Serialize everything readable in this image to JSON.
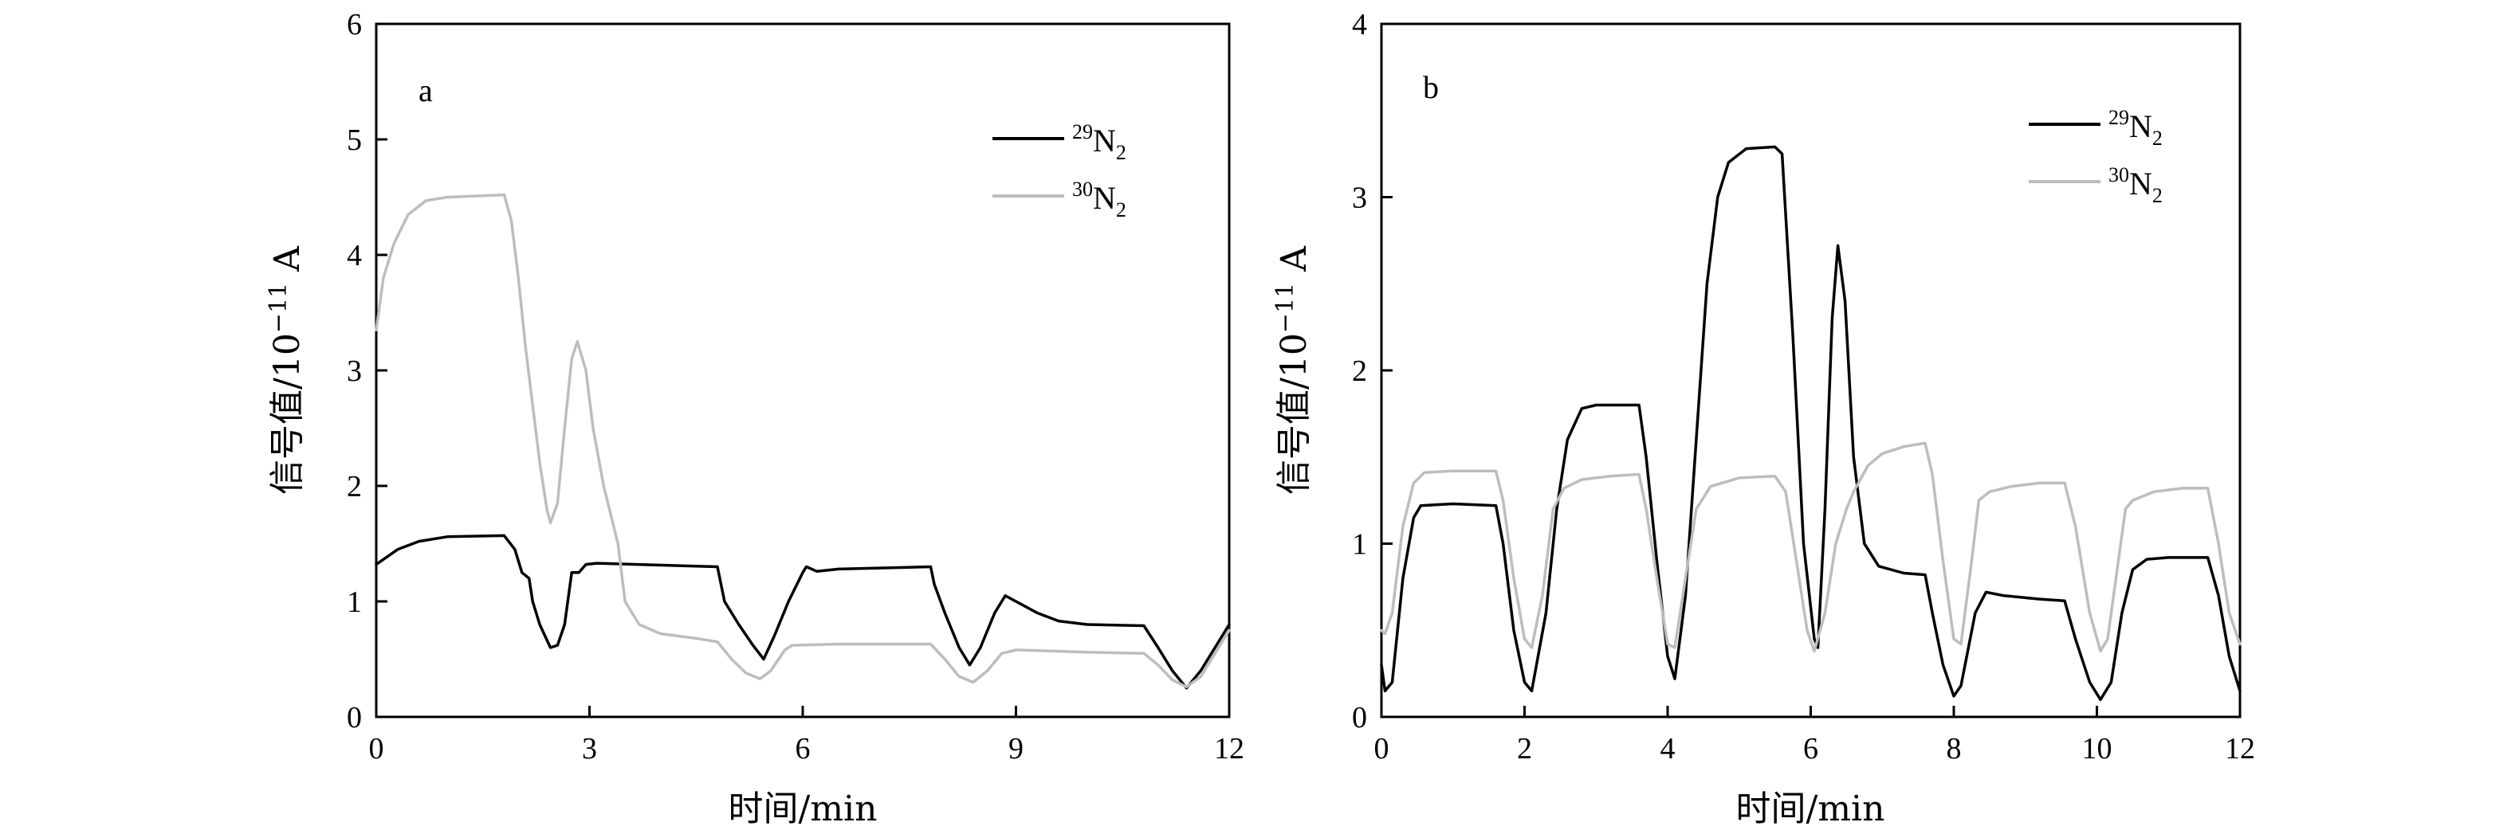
{
  "chart_data": [
    {
      "type": "line",
      "panel_label": "a",
      "xlabel": "时间/min",
      "ylabel_prefix": "信号值/10",
      "ylabel_exp": "−11",
      "ylabel_suffix": " A",
      "xlim": [
        0,
        12
      ],
      "ylim": [
        0,
        6
      ],
      "xticks": [
        0,
        3,
        6,
        9,
        12
      ],
      "yticks": [
        0,
        1,
        2,
        3,
        4,
        5,
        6
      ],
      "grid": false,
      "legend_position": "top-right",
      "series": [
        {
          "name": "N",
          "name_sup": "29",
          "name_sub": "2",
          "color": "#000000",
          "points": [
            [
              0,
              1.32
            ],
            [
              0.3,
              1.45
            ],
            [
              0.6,
              1.52
            ],
            [
              1,
              1.56
            ],
            [
              1.8,
              1.57
            ],
            [
              1.95,
              1.45
            ],
            [
              2.05,
              1.25
            ],
            [
              2.15,
              1.2
            ],
            [
              2.2,
              1.0
            ],
            [
              2.3,
              0.8
            ],
            [
              2.45,
              0.6
            ],
            [
              2.55,
              0.62
            ],
            [
              2.65,
              0.8
            ],
            [
              2.75,
              1.25
            ],
            [
              2.85,
              1.25
            ],
            [
              2.95,
              1.32
            ],
            [
              3.1,
              1.33
            ],
            [
              4.8,
              1.3
            ],
            [
              4.9,
              1.0
            ],
            [
              5.1,
              0.8
            ],
            [
              5.3,
              0.62
            ],
            [
              5.45,
              0.5
            ],
            [
              5.6,
              0.7
            ],
            [
              5.8,
              1.0
            ],
            [
              6.0,
              1.25
            ],
            [
              6.05,
              1.3
            ],
            [
              6.2,
              1.26
            ],
            [
              6.5,
              1.28
            ],
            [
              7.8,
              1.3
            ],
            [
              7.85,
              1.15
            ],
            [
              8.0,
              0.9
            ],
            [
              8.2,
              0.6
            ],
            [
              8.35,
              0.45
            ],
            [
              8.5,
              0.6
            ],
            [
              8.7,
              0.9
            ],
            [
              8.85,
              1.05
            ],
            [
              9.0,
              1.0
            ],
            [
              9.3,
              0.9
            ],
            [
              9.6,
              0.83
            ],
            [
              10.0,
              0.8
            ],
            [
              10.8,
              0.79
            ],
            [
              11.0,
              0.6
            ],
            [
              11.2,
              0.4
            ],
            [
              11.4,
              0.25
            ],
            [
              11.6,
              0.4
            ],
            [
              11.8,
              0.6
            ],
            [
              12,
              0.8
            ]
          ]
        },
        {
          "name": "N",
          "name_sup": "30",
          "name_sub": "2",
          "color": "#bdbdbd",
          "points": [
            [
              0,
              3.35
            ],
            [
              0.1,
              3.8
            ],
            [
              0.25,
              4.1
            ],
            [
              0.45,
              4.35
            ],
            [
              0.7,
              4.47
            ],
            [
              1,
              4.5
            ],
            [
              1.8,
              4.52
            ],
            [
              1.9,
              4.3
            ],
            [
              2.0,
              3.8
            ],
            [
              2.1,
              3.2
            ],
            [
              2.2,
              2.7
            ],
            [
              2.3,
              2.2
            ],
            [
              2.4,
              1.8
            ],
            [
              2.45,
              1.68
            ],
            [
              2.55,
              1.85
            ],
            [
              2.65,
              2.5
            ],
            [
              2.75,
              3.1
            ],
            [
              2.83,
              3.25
            ],
            [
              2.95,
              3.0
            ],
            [
              3.05,
              2.5
            ],
            [
              3.2,
              2.0
            ],
            [
              3.4,
              1.5
            ],
            [
              3.5,
              1.0
            ],
            [
              3.7,
              0.8
            ],
            [
              4.0,
              0.72
            ],
            [
              4.5,
              0.68
            ],
            [
              4.8,
              0.65
            ],
            [
              5.0,
              0.5
            ],
            [
              5.2,
              0.38
            ],
            [
              5.4,
              0.33
            ],
            [
              5.55,
              0.4
            ],
            [
              5.75,
              0.58
            ],
            [
              5.85,
              0.62
            ],
            [
              6.5,
              0.63
            ],
            [
              7.8,
              0.63
            ],
            [
              8.0,
              0.5
            ],
            [
              8.2,
              0.35
            ],
            [
              8.4,
              0.3
            ],
            [
              8.6,
              0.4
            ],
            [
              8.8,
              0.55
            ],
            [
              9.0,
              0.58
            ],
            [
              10.0,
              0.56
            ],
            [
              10.8,
              0.55
            ],
            [
              11.0,
              0.45
            ],
            [
              11.2,
              0.32
            ],
            [
              11.4,
              0.26
            ],
            [
              11.6,
              0.35
            ],
            [
              11.8,
              0.55
            ],
            [
              12,
              0.75
            ]
          ]
        }
      ]
    },
    {
      "type": "line",
      "panel_label": "b",
      "xlabel": "时间/min",
      "ylabel_prefix": "信号值/10",
      "ylabel_exp": "−11",
      "ylabel_suffix": " A",
      "xlim": [
        0,
        12
      ],
      "ylim": [
        0,
        4
      ],
      "xticks": [
        0,
        2,
        4,
        6,
        8,
        10,
        12
      ],
      "yticks": [
        0,
        1,
        2,
        3,
        4
      ],
      "grid": false,
      "legend_position": "top-right",
      "series": [
        {
          "name": "N",
          "name_sup": "29",
          "name_sub": "2",
          "color": "#000000",
          "points": [
            [
              0,
              0.3
            ],
            [
              0.05,
              0.15
            ],
            [
              0.15,
              0.2
            ],
            [
              0.3,
              0.8
            ],
            [
              0.45,
              1.15
            ],
            [
              0.55,
              1.22
            ],
            [
              1.0,
              1.23
            ],
            [
              1.6,
              1.22
            ],
            [
              1.7,
              1.0
            ],
            [
              1.85,
              0.5
            ],
            [
              2.0,
              0.2
            ],
            [
              2.1,
              0.15
            ],
            [
              2.3,
              0.6
            ],
            [
              2.45,
              1.2
            ],
            [
              2.6,
              1.6
            ],
            [
              2.8,
              1.78
            ],
            [
              3.0,
              1.8
            ],
            [
              3.6,
              1.8
            ],
            [
              3.7,
              1.5
            ],
            [
              3.85,
              0.9
            ],
            [
              4.0,
              0.35
            ],
            [
              4.1,
              0.22
            ],
            [
              4.25,
              0.7
            ],
            [
              4.4,
              1.6
            ],
            [
              4.55,
              2.5
            ],
            [
              4.7,
              3.0
            ],
            [
              4.85,
              3.2
            ],
            [
              5.1,
              3.28
            ],
            [
              5.5,
              3.29
            ],
            [
              5.6,
              3.25
            ],
            [
              5.75,
              2.2
            ],
            [
              5.9,
              1.0
            ],
            [
              6.05,
              0.45
            ],
            [
              6.1,
              0.4
            ],
            [
              6.2,
              1.2
            ],
            [
              6.3,
              2.3
            ],
            [
              6.38,
              2.72
            ],
            [
              6.48,
              2.4
            ],
            [
              6.6,
              1.5
            ],
            [
              6.75,
              1.0
            ],
            [
              6.95,
              0.87
            ],
            [
              7.3,
              0.83
            ],
            [
              7.6,
              0.82
            ],
            [
              7.7,
              0.6
            ],
            [
              7.85,
              0.3
            ],
            [
              8.0,
              0.12
            ],
            [
              8.1,
              0.18
            ],
            [
              8.3,
              0.6
            ],
            [
              8.45,
              0.72
            ],
            [
              8.7,
              0.7
            ],
            [
              9.2,
              0.68
            ],
            [
              9.55,
              0.67
            ],
            [
              9.7,
              0.45
            ],
            [
              9.9,
              0.2
            ],
            [
              10.05,
              0.1
            ],
            [
              10.2,
              0.2
            ],
            [
              10.35,
              0.6
            ],
            [
              10.5,
              0.85
            ],
            [
              10.7,
              0.91
            ],
            [
              11.0,
              0.92
            ],
            [
              11.55,
              0.92
            ],
            [
              11.7,
              0.7
            ],
            [
              11.85,
              0.35
            ],
            [
              12,
              0.15
            ]
          ]
        },
        {
          "name": "N",
          "name_sup": "30",
          "name_sub": "2",
          "color": "#bdbdbd",
          "points": [
            [
              0,
              0.5
            ],
            [
              0.05,
              0.48
            ],
            [
              0.15,
              0.6
            ],
            [
              0.3,
              1.1
            ],
            [
              0.45,
              1.35
            ],
            [
              0.6,
              1.41
            ],
            [
              1.0,
              1.42
            ],
            [
              1.6,
              1.42
            ],
            [
              1.7,
              1.25
            ],
            [
              1.85,
              0.8
            ],
            [
              2.0,
              0.45
            ],
            [
              2.1,
              0.4
            ],
            [
              2.25,
              0.7
            ],
            [
              2.4,
              1.2
            ],
            [
              2.55,
              1.32
            ],
            [
              2.8,
              1.37
            ],
            [
              3.2,
              1.39
            ],
            [
              3.6,
              1.4
            ],
            [
              3.7,
              1.2
            ],
            [
              3.85,
              0.8
            ],
            [
              4.0,
              0.42
            ],
            [
              4.1,
              0.4
            ],
            [
              4.25,
              0.8
            ],
            [
              4.4,
              1.2
            ],
            [
              4.6,
              1.33
            ],
            [
              5.0,
              1.38
            ],
            [
              5.5,
              1.39
            ],
            [
              5.65,
              1.3
            ],
            [
              5.8,
              0.9
            ],
            [
              5.95,
              0.5
            ],
            [
              6.05,
              0.38
            ],
            [
              6.2,
              0.6
            ],
            [
              6.35,
              1.0
            ],
            [
              6.5,
              1.2
            ],
            [
              6.6,
              1.3
            ],
            [
              6.8,
              1.45
            ],
            [
              7.0,
              1.52
            ],
            [
              7.3,
              1.56
            ],
            [
              7.6,
              1.58
            ],
            [
              7.7,
              1.4
            ],
            [
              7.85,
              0.9
            ],
            [
              8.0,
              0.45
            ],
            [
              8.1,
              0.42
            ],
            [
              8.25,
              0.9
            ],
            [
              8.35,
              1.25
            ],
            [
              8.5,
              1.3
            ],
            [
              8.8,
              1.33
            ],
            [
              9.2,
              1.35
            ],
            [
              9.55,
              1.35
            ],
            [
              9.7,
              1.1
            ],
            [
              9.9,
              0.6
            ],
            [
              10.05,
              0.38
            ],
            [
              10.15,
              0.45
            ],
            [
              10.3,
              0.9
            ],
            [
              10.4,
              1.2
            ],
            [
              10.5,
              1.25
            ],
            [
              10.8,
              1.3
            ],
            [
              11.2,
              1.32
            ],
            [
              11.55,
              1.32
            ],
            [
              11.7,
              1.0
            ],
            [
              11.85,
              0.6
            ],
            [
              12,
              0.42
            ]
          ]
        }
      ]
    }
  ]
}
